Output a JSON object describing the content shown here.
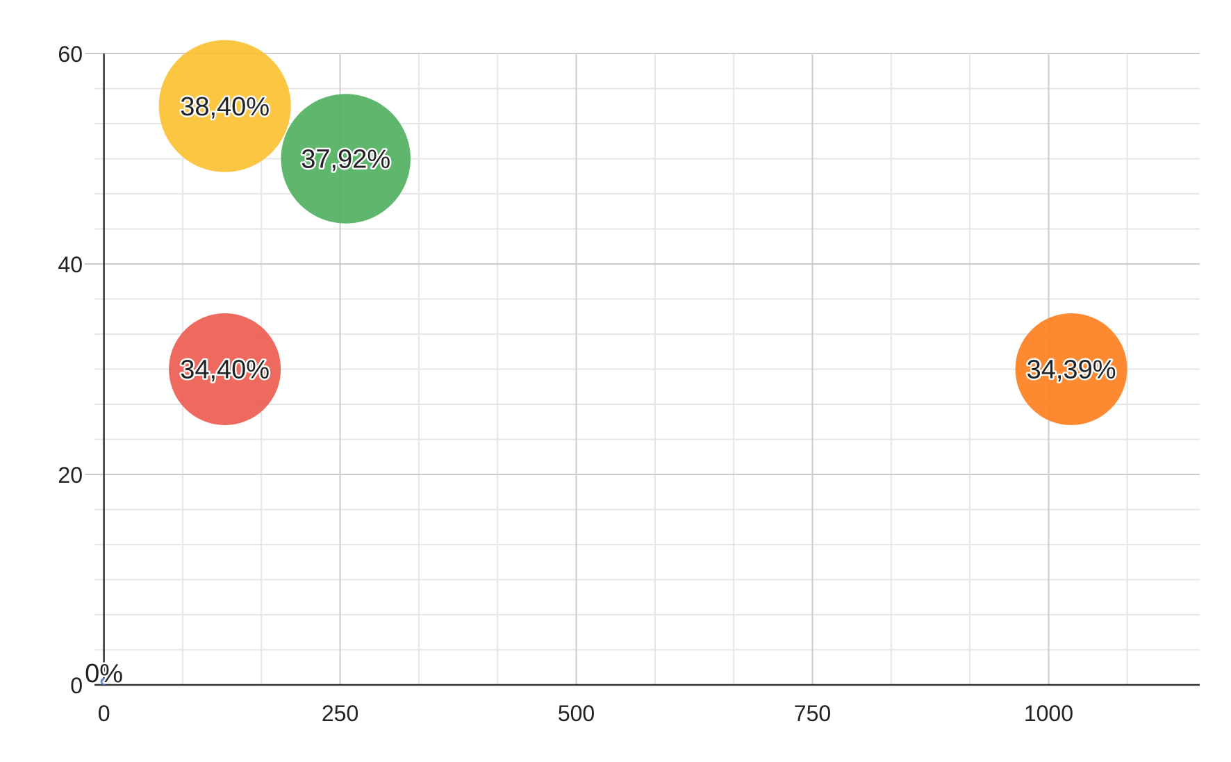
{
  "chart_data": {
    "type": "scatter",
    "title": "",
    "xlabel": "",
    "ylabel": "",
    "xlim": [
      -10,
      1160
    ],
    "ylim": [
      0,
      60
    ],
    "x_ticks": [
      0,
      250,
      500,
      750,
      1000
    ],
    "y_ticks": [
      0,
      20,
      40,
      60
    ],
    "x_tick_labels": [
      "0",
      "250",
      "500",
      "750",
      "1000"
    ],
    "y_tick_labels": [
      "0",
      "20",
      "40",
      "60"
    ],
    "grid": true,
    "legend": "none",
    "points": [
      {
        "x": 0,
        "y": 0,
        "size": 0,
        "label": "0%",
        "color": "#4a7fd6"
      },
      {
        "x": 128,
        "y": 55,
        "size": 38.4,
        "label": "38,40%",
        "color": "#fbc02d"
      },
      {
        "x": 256,
        "y": 50,
        "size": 37.92,
        "label": "37,92%",
        "color": "#4caf5c"
      },
      {
        "x": 128,
        "y": 30,
        "size": 34.4,
        "label": "34,40%",
        "color": "#ec5a4e"
      },
      {
        "x": 1024,
        "y": 30,
        "size": 34.39,
        "label": "34,39%",
        "color": "#fd7d1a"
      }
    ]
  }
}
